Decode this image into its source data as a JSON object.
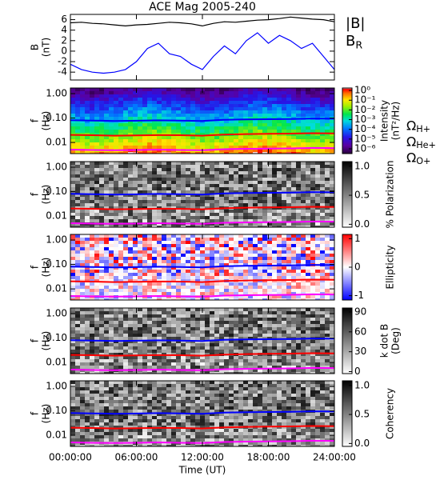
{
  "chart_data": [
    {
      "type": "line",
      "title": "ACE Mag 2005-240",
      "ylabel": [
        "B",
        "(nT)"
      ],
      "x": [
        0,
        1,
        2,
        3,
        4,
        5,
        6,
        7,
        8,
        9,
        10,
        11,
        12,
        13,
        14,
        15,
        16,
        17,
        18,
        19,
        20,
        21,
        22,
        23,
        24
      ],
      "xlim": [
        0,
        24
      ],
      "ylim": [
        -5.5,
        7
      ],
      "yticks": [
        -4,
        -2,
        0,
        2,
        4,
        6
      ],
      "legend": "right",
      "series": [
        {
          "name": "|B|",
          "color": "#000000",
          "values": [
            5.4,
            5.5,
            5.3,
            5.2,
            5.0,
            4.8,
            5.0,
            5.1,
            5.3,
            5.5,
            5.4,
            5.2,
            4.8,
            5.3,
            5.6,
            5.5,
            5.7,
            5.9,
            6.0,
            6.2,
            6.5,
            6.3,
            6.1,
            6.0,
            5.6
          ]
        },
        {
          "name": "B_R",
          "color": "#0000ff",
          "values": [
            -2.5,
            -3.5,
            -4.0,
            -4.2,
            -4.0,
            -3.5,
            -2.0,
            0.5,
            1.5,
            -0.5,
            -1.0,
            -2.5,
            -3.5,
            -1.0,
            1.0,
            -0.5,
            2.0,
            3.5,
            1.5,
            3.0,
            2.0,
            0.5,
            1.5,
            -1.0,
            -3.5
          ]
        }
      ]
    },
    {
      "type": "spectrogram",
      "ylabel": [
        "f",
        "(Hz)"
      ],
      "yscale": "log",
      "ylim": [
        0.0035,
        1.7
      ],
      "yticks": [
        {
          "value": 0.01,
          "label": "0.01"
        },
        {
          "value": 0.1,
          "label": "0.10"
        },
        {
          "value": 1,
          "label": "1.00"
        }
      ],
      "x": [
        0,
        2,
        4,
        6,
        8,
        10,
        12,
        14,
        16,
        18,
        20,
        22,
        24
      ],
      "xlim": [
        0,
        24
      ],
      "colormap": "rainbow",
      "cscale": "log",
      "clim": [
        3.2e-07,
        1.8
      ],
      "cticks": [
        {
          "value": 1,
          "label": "10⁰"
        },
        {
          "value": 0.1,
          "label": "10⁻¹"
        },
        {
          "value": 0.01,
          "label": "10⁻²"
        },
        {
          "value": 0.001,
          "label": "10⁻³"
        },
        {
          "value": 0.0001,
          "label": "10⁻⁴"
        },
        {
          "value": 1e-05,
          "label": "10⁻⁵"
        },
        {
          "value": 1e-06,
          "label": "10⁻⁶"
        }
      ],
      "clabel": [
        "Intensity",
        "(nT²/Hz)"
      ],
      "legend": "right",
      "series": [
        {
          "name": "Ω_H+",
          "color": "#0000ff",
          "values": [
            0.082,
            0.079,
            0.076,
            0.078,
            0.081,
            0.079,
            0.076,
            0.085,
            0.088,
            0.09,
            0.091,
            0.096,
            0.094
          ]
        },
        {
          "name": "Ω_He+",
          "color": "#ff0000",
          "values": [
            0.0205,
            0.0198,
            0.019,
            0.0195,
            0.02,
            0.0198,
            0.019,
            0.021,
            0.022,
            0.0225,
            0.023,
            0.024,
            0.0235
          ]
        },
        {
          "name": "Ω_O+",
          "color": "#ff00ff",
          "values": [
            0.0051,
            0.0049,
            0.0048,
            0.0049,
            0.0051,
            0.0049,
            0.0048,
            0.0053,
            0.0055,
            0.0056,
            0.0057,
            0.006,
            0.0059
          ]
        }
      ]
    },
    {
      "type": "spectrogram",
      "ylabel": [
        "f",
        "(Hz)"
      ],
      "yscale": "log",
      "ylim": [
        0.0035,
        1.7
      ],
      "yticks": [
        {
          "value": 0.01,
          "label": "0.01"
        },
        {
          "value": 0.1,
          "label": "0.10"
        },
        {
          "value": 1,
          "label": "1.00"
        }
      ],
      "x": [
        0,
        2,
        4,
        6,
        8,
        10,
        12,
        14,
        16,
        18,
        20,
        22,
        24
      ],
      "xlim": [
        0,
        24
      ],
      "colormap": "greys",
      "cscale": "linear",
      "clim": [
        -0.05,
        1.08
      ],
      "cticks": [
        {
          "value": 0,
          "label": "0.0"
        },
        {
          "value": 0.5,
          "label": "0.5"
        },
        {
          "value": 1,
          "label": "1.0"
        }
      ],
      "clabel": [
        "% Polarization"
      ],
      "legend": "none",
      "series": [
        {
          "name": "Ω_H+",
          "color": "#0000ff",
          "values": [
            0.082,
            0.079,
            0.076,
            0.078,
            0.081,
            0.079,
            0.076,
            0.085,
            0.088,
            0.09,
            0.091,
            0.096,
            0.094
          ]
        },
        {
          "name": "Ω_He+",
          "color": "#ff0000",
          "values": [
            0.0205,
            0.0198,
            0.019,
            0.0195,
            0.02,
            0.0198,
            0.019,
            0.021,
            0.022,
            0.0225,
            0.023,
            0.024,
            0.0235
          ]
        },
        {
          "name": "Ω_O+",
          "color": "#ff00ff",
          "values": [
            0.0051,
            0.0049,
            0.0048,
            0.0049,
            0.0051,
            0.0049,
            0.0048,
            0.0053,
            0.0055,
            0.0056,
            0.0057,
            0.006,
            0.0059
          ]
        }
      ]
    },
    {
      "type": "spectrogram",
      "ylabel": [
        "f",
        "(Hz)"
      ],
      "yscale": "log",
      "ylim": [
        0.0035,
        1.7
      ],
      "yticks": [
        {
          "value": 0.01,
          "label": "0.01"
        },
        {
          "value": 0.1,
          "label": "0.10"
        },
        {
          "value": 1,
          "label": "1.00"
        }
      ],
      "x": [
        0,
        2,
        4,
        6,
        8,
        10,
        12,
        14,
        16,
        18,
        20,
        22,
        24
      ],
      "xlim": [
        0,
        24
      ],
      "colormap": "bwr",
      "cscale": "linear",
      "clim": [
        -1.15,
        1.15
      ],
      "cticks": [
        -1,
        0,
        1
      ],
      "clabel": [
        "Ellipticity"
      ],
      "legend": "none",
      "series": [
        {
          "name": "Ω_H+",
          "color": "#0000ff",
          "values": [
            0.082,
            0.079,
            0.076,
            0.078,
            0.081,
            0.079,
            0.076,
            0.085,
            0.088,
            0.09,
            0.091,
            0.096,
            0.094
          ]
        },
        {
          "name": "Ω_He+",
          "color": "#ff0000",
          "values": [
            0.0205,
            0.0198,
            0.019,
            0.0195,
            0.02,
            0.0198,
            0.019,
            0.021,
            0.022,
            0.0225,
            0.023,
            0.024,
            0.0235
          ]
        },
        {
          "name": "Ω_O+",
          "color": "#ff00ff",
          "values": [
            0.0051,
            0.0049,
            0.0048,
            0.0049,
            0.0051,
            0.0049,
            0.0048,
            0.0053,
            0.0055,
            0.0056,
            0.0057,
            0.006,
            0.0059
          ]
        }
      ]
    },
    {
      "type": "spectrogram",
      "ylabel": [
        "f",
        "(Hz)"
      ],
      "yscale": "log",
      "ylim": [
        0.0035,
        1.7
      ],
      "yticks": [
        {
          "value": 0.01,
          "label": "0.01"
        },
        {
          "value": 0.1,
          "label": "0.10"
        },
        {
          "value": 1,
          "label": "1.00"
        }
      ],
      "x": [
        0,
        2,
        4,
        6,
        8,
        10,
        12,
        14,
        16,
        18,
        20,
        22,
        24
      ],
      "xlim": [
        0,
        24
      ],
      "colormap": "greys",
      "cscale": "linear",
      "clim": [
        -3,
        96
      ],
      "cticks": [
        0,
        30,
        60,
        90
      ],
      "clabel": [
        "k dot B",
        "(Deg)"
      ],
      "legend": "none",
      "series": [
        {
          "name": "Ω_H+",
          "color": "#0000ff",
          "values": [
            0.082,
            0.079,
            0.076,
            0.078,
            0.081,
            0.079,
            0.076,
            0.085,
            0.088,
            0.09,
            0.091,
            0.096,
            0.094
          ]
        },
        {
          "name": "Ω_He+",
          "color": "#ff0000",
          "values": [
            0.0205,
            0.0198,
            0.019,
            0.0195,
            0.02,
            0.0198,
            0.019,
            0.021,
            0.022,
            0.0225,
            0.023,
            0.024,
            0.0235
          ]
        },
        {
          "name": "Ω_O+",
          "color": "#ff00ff",
          "values": [
            0.0051,
            0.0049,
            0.0048,
            0.0049,
            0.0051,
            0.0049,
            0.0048,
            0.0053,
            0.0055,
            0.0056,
            0.0057,
            0.006,
            0.0059
          ]
        }
      ]
    },
    {
      "type": "spectrogram",
      "ylabel": [
        "f",
        "(Hz)"
      ],
      "yscale": "log",
      "ylim": [
        0.0035,
        1.7
      ],
      "yticks": [
        {
          "value": 0.01,
          "label": "0.01"
        },
        {
          "value": 0.1,
          "label": "0.10"
        },
        {
          "value": 1,
          "label": "1.00"
        }
      ],
      "x": [
        0,
        2,
        4,
        6,
        8,
        10,
        12,
        14,
        16,
        18,
        20,
        22,
        24
      ],
      "xlim": [
        0,
        24
      ],
      "colormap": "greys",
      "cscale": "linear",
      "clim": [
        -0.05,
        1.08
      ],
      "cticks": [
        {
          "value": 0,
          "label": "0.0"
        },
        {
          "value": 0.5,
          "label": "0.5"
        },
        {
          "value": 1,
          "label": "1.0"
        }
      ],
      "clabel": [
        "Coherency"
      ],
      "legend": "none",
      "xticks": [
        {
          "value": 0,
          "label": "00:00:00"
        },
        {
          "value": 6,
          "label": "06:00:00"
        },
        {
          "value": 12,
          "label": "12:00:00"
        },
        {
          "value": 18,
          "label": "18:00:00"
        },
        {
          "value": 24,
          "label": "24:00:00"
        }
      ],
      "xlabel": "Time (UT)",
      "series": [
        {
          "name": "Ω_H+",
          "color": "#0000ff",
          "values": [
            0.082,
            0.079,
            0.076,
            0.078,
            0.081,
            0.079,
            0.076,
            0.085,
            0.088,
            0.09,
            0.091,
            0.096,
            0.094
          ]
        },
        {
          "name": "Ω_He+",
          "color": "#ff0000",
          "values": [
            0.0205,
            0.0198,
            0.019,
            0.0195,
            0.02,
            0.0198,
            0.019,
            0.021,
            0.022,
            0.0225,
            0.023,
            0.024,
            0.0235
          ]
        },
        {
          "name": "Ω_O+",
          "color": "#ff00ff",
          "values": [
            0.0051,
            0.0049,
            0.0048,
            0.0049,
            0.0051,
            0.0049,
            0.0048,
            0.0053,
            0.0055,
            0.0056,
            0.0057,
            0.006,
            0.0059
          ]
        }
      ]
    }
  ]
}
